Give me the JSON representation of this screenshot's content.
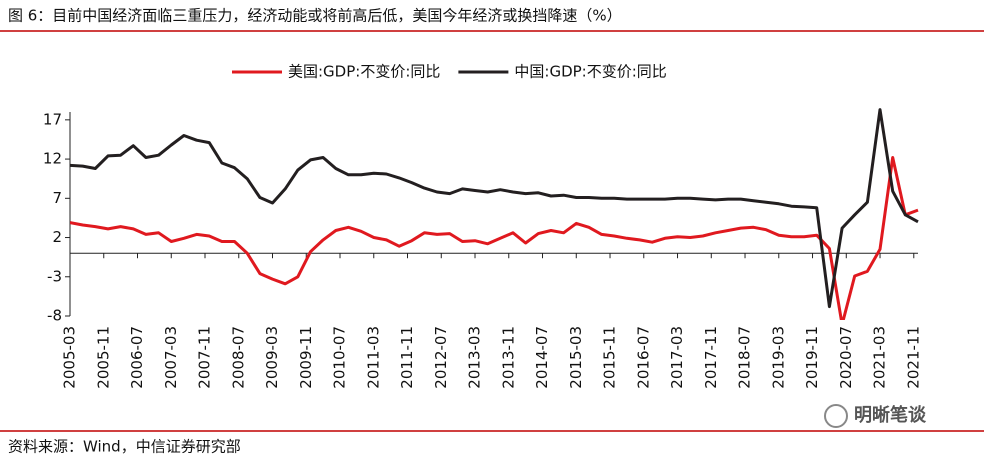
{
  "chart_data": {
    "type": "line",
    "title": "图 6：目前中国经济面临三重压力，经济动能或将前高后低，美国今年经济或换挡降速（%）",
    "source": "资料来源：Wind，中信证券研究部",
    "watermark": "明晰笔谈",
    "x": [
      "2005-03",
      "2005-06",
      "2005-09",
      "2005-12",
      "2006-03",
      "2006-06",
      "2006-09",
      "2006-12",
      "2007-03",
      "2007-06",
      "2007-09",
      "2007-12",
      "2008-03",
      "2008-06",
      "2008-09",
      "2008-12",
      "2009-03",
      "2009-06",
      "2009-09",
      "2009-12",
      "2010-03",
      "2010-06",
      "2010-09",
      "2010-12",
      "2011-03",
      "2011-06",
      "2011-09",
      "2011-12",
      "2012-03",
      "2012-06",
      "2012-09",
      "2012-12",
      "2013-03",
      "2013-06",
      "2013-09",
      "2013-12",
      "2014-03",
      "2014-06",
      "2014-09",
      "2014-12",
      "2015-03",
      "2015-06",
      "2015-09",
      "2015-12",
      "2016-03",
      "2016-06",
      "2016-09",
      "2016-12",
      "2017-03",
      "2017-06",
      "2017-09",
      "2017-12",
      "2018-03",
      "2018-06",
      "2018-09",
      "2018-12",
      "2019-03",
      "2019-06",
      "2019-09",
      "2019-12",
      "2020-03",
      "2020-06",
      "2020-09",
      "2020-12",
      "2021-03",
      "2021-06",
      "2021-09",
      "2021-12"
    ],
    "xlim": [
      "2005-03",
      "2021-12"
    ],
    "xticks": [
      "2005-03",
      "2005-11",
      "2006-07",
      "2007-03",
      "2007-11",
      "2008-07",
      "2009-03",
      "2009-11",
      "2010-07",
      "2011-03",
      "2011-11",
      "2012-07",
      "2013-03",
      "2013-11",
      "2014-07",
      "2015-03",
      "2015-11",
      "2016-07",
      "2017-03",
      "2017-11",
      "2018-07",
      "2019-03",
      "2019-11",
      "2020-07",
      "2021-03",
      "2021-11"
    ],
    "ylim": [
      -8,
      18
    ],
    "yticks": [
      -8,
      -3,
      2,
      7,
      12,
      17
    ],
    "series": [
      {
        "name": "美国:GDP:不变价:同比",
        "color": "#e0191f",
        "values": [
          3.9,
          3.6,
          3.4,
          3.1,
          3.4,
          3.1,
          2.4,
          2.6,
          1.5,
          1.9,
          2.4,
          2.2,
          1.5,
          1.5,
          0.0,
          -2.6,
          -3.3,
          -3.9,
          -3.0,
          0.2,
          1.7,
          2.9,
          3.3,
          2.8,
          2.0,
          1.7,
          0.9,
          1.6,
          2.6,
          2.4,
          2.5,
          1.5,
          1.6,
          1.2,
          1.9,
          2.6,
          1.3,
          2.5,
          2.9,
          2.6,
          3.8,
          3.3,
          2.4,
          2.2,
          1.9,
          1.7,
          1.4,
          1.9,
          2.1,
          2.0,
          2.2,
          2.6,
          2.9,
          3.2,
          3.3,
          3.0,
          2.3,
          2.1,
          2.1,
          2.3,
          0.6,
          -9.1,
          -2.9,
          -2.3,
          0.5,
          12.2,
          4.9,
          5.5
        ]
      },
      {
        "name": "中国:GDP:不变价:同比",
        "color": "#231f20",
        "values": [
          11.2,
          11.1,
          10.8,
          12.4,
          12.5,
          13.7,
          12.2,
          12.5,
          13.8,
          15.0,
          14.4,
          14.1,
          11.5,
          10.9,
          9.5,
          7.1,
          6.4,
          8.2,
          10.6,
          11.9,
          12.2,
          10.8,
          10.0,
          10.0,
          10.2,
          10.1,
          9.6,
          9.0,
          8.3,
          7.8,
          7.6,
          8.2,
          8.0,
          7.8,
          8.1,
          7.8,
          7.6,
          7.7,
          7.3,
          7.4,
          7.1,
          7.1,
          7.0,
          7.0,
          6.9,
          6.9,
          6.9,
          6.9,
          7.0,
          7.0,
          6.9,
          6.8,
          6.9,
          6.9,
          6.7,
          6.5,
          6.3,
          6.0,
          5.9,
          5.8,
          -6.8,
          3.2,
          4.9,
          6.5,
          18.3,
          7.9,
          4.9,
          4.0
        ]
      }
    ]
  }
}
